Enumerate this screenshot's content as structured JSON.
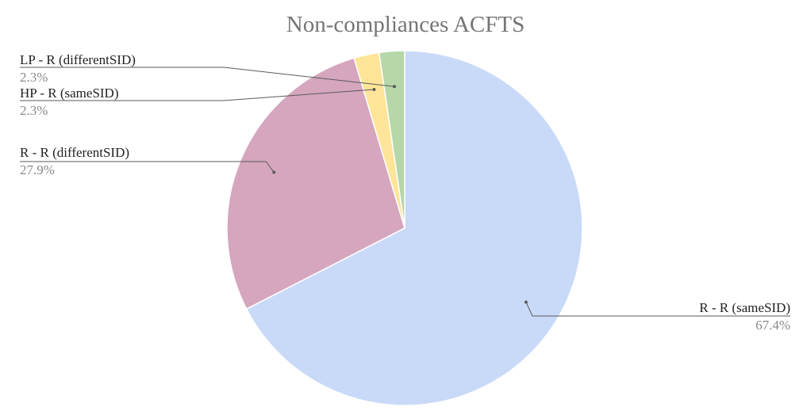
{
  "chart_data": {
    "type": "pie",
    "title": "Non-compliances ACFTS",
    "slices": [
      {
        "name": "R - R (sameSID)",
        "value": 67.4,
        "percent_label": "67.4%",
        "color": "#c9daf8"
      },
      {
        "name": "R - R (differentSID)",
        "value": 27.9,
        "percent_label": "27.9%",
        "color": "#d5a6bd"
      },
      {
        "name": "HP - R (sameSID)",
        "value": 2.3,
        "percent_label": "2.3%",
        "color": "#ffe599"
      },
      {
        "name": "LP - R (differentSID)",
        "value": 2.3,
        "percent_label": "2.3%",
        "color": "#b6d7a8"
      }
    ],
    "start": "12 o'clock",
    "direction": "clockwise",
    "legend": "none (labels beside slices)"
  }
}
